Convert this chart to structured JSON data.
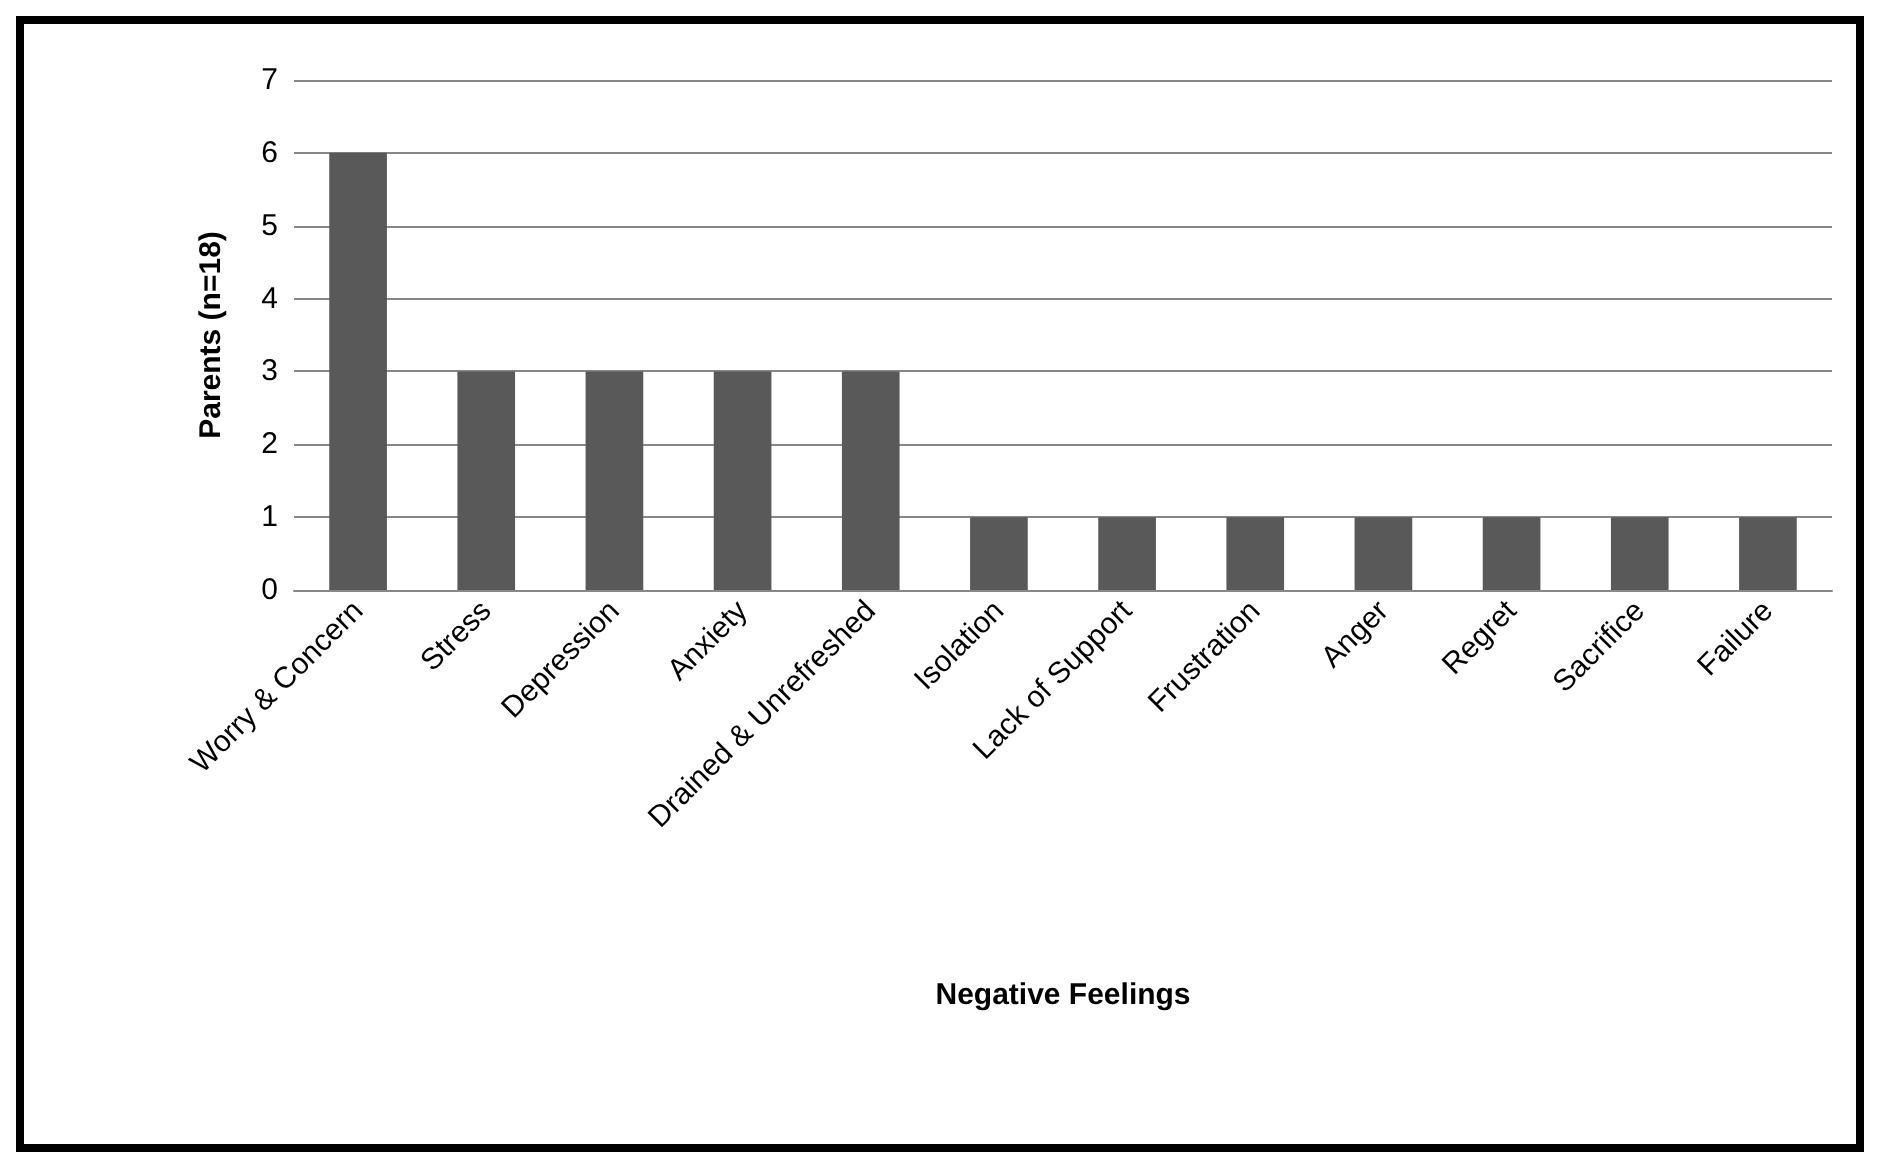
{
  "chart_data": {
    "type": "bar",
    "xlabel": "Negative Feelings",
    "ylabel": "Parents (n=18)",
    "categories": [
      "Worry & Concern",
      "Stress",
      "Depression",
      "Anxiety",
      "Drained & Unrefreshed",
      "Isolation",
      "Lack of Support",
      "Frustration",
      "Anger",
      "Regret",
      "Sacrifice",
      "Failure"
    ],
    "values": [
      6,
      3,
      3,
      3,
      3,
      1,
      1,
      1,
      1,
      1,
      1,
      1
    ],
    "color": "#595959",
    "ylim": [
      0,
      7
    ],
    "yticks": [
      0,
      1,
      2,
      3,
      4,
      5,
      6,
      7
    ],
    "grid": "y"
  }
}
